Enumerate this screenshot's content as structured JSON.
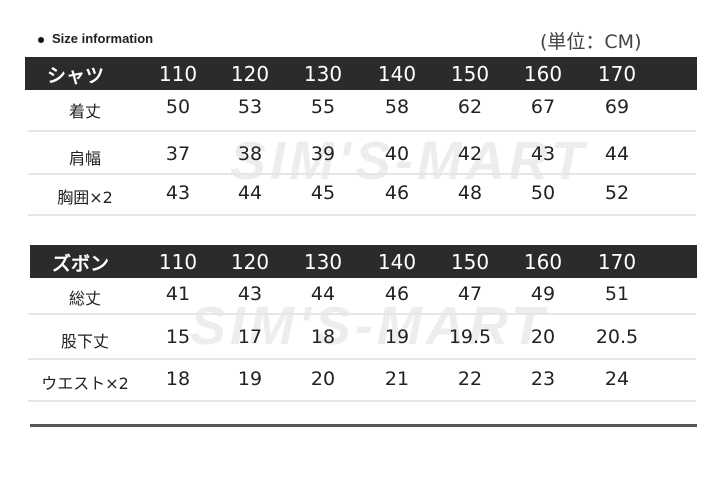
{
  "title": "Size information",
  "unit": "(単位：CM)",
  "watermark": "SIM'S-MART",
  "sizes": [
    "110",
    "120",
    "130",
    "140",
    "150",
    "160",
    "170"
  ],
  "shirt": {
    "label": "シャツ",
    "rows": [
      {
        "label": "着丈",
        "values": [
          "50",
          "53",
          "55",
          "58",
          "62",
          "67",
          "69"
        ]
      },
      {
        "label": "肩幅",
        "values": [
          "37",
          "38",
          "39",
          "40",
          "42",
          "43",
          "44"
        ]
      },
      {
        "label": "胸囲×2",
        "values": [
          "43",
          "44",
          "45",
          "46",
          "48",
          "50",
          "52"
        ]
      }
    ]
  },
  "pants": {
    "label": "ズボン",
    "rows": [
      {
        "label": "総丈",
        "values": [
          "41",
          "43",
          "44",
          "46",
          "47",
          "49",
          "51"
        ]
      },
      {
        "label": "股下丈",
        "values": [
          "15",
          "17",
          "18",
          "19",
          "19.5",
          "20",
          "20.5"
        ]
      },
      {
        "label": "ウエスト×2",
        "values": [
          "18",
          "19",
          "20",
          "21",
          "22",
          "23",
          "24"
        ]
      }
    ]
  }
}
